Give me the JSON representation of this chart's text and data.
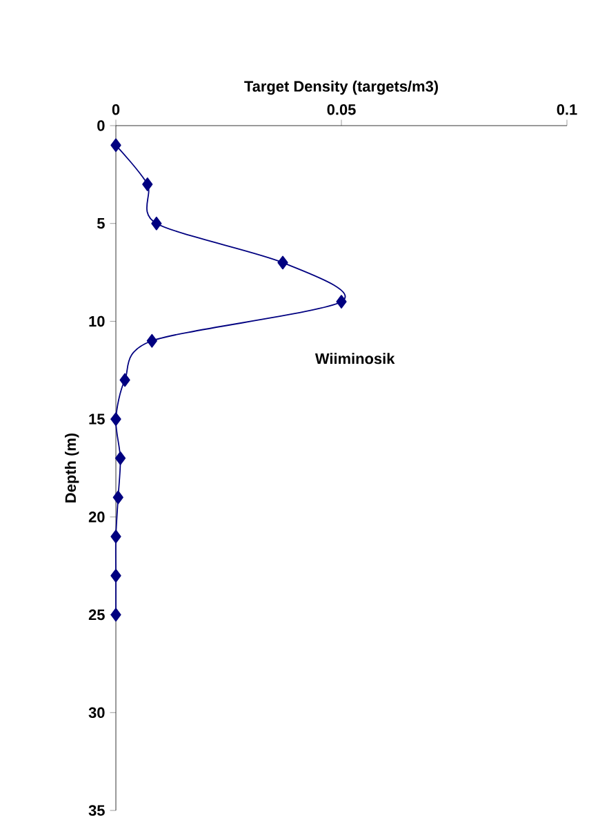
{
  "chart_data": {
    "type": "line",
    "xlabel": "Target Density (targets/m3)",
    "ylabel": "Depth (m)",
    "annotations": [
      "Wiiminosik"
    ],
    "series": [
      {
        "color": "#000080",
        "x": [
          0,
          0.007,
          0.009,
          0.037,
          0.05,
          0.008,
          0.002,
          0,
          0.001,
          0.0005,
          0,
          0,
          0
        ],
        "values": [
          1,
          3,
          5,
          7,
          9,
          11,
          13,
          15,
          17,
          19,
          21,
          23,
          25
        ]
      }
    ],
    "xlim": [
      0,
      0.1
    ],
    "xticks": [
      0,
      0.05,
      0.1
    ],
    "ylim": [
      35,
      0
    ],
    "yticks": [
      0,
      5,
      10,
      15,
      20,
      25,
      30,
      35
    ],
    "marker": "diamond",
    "grid": false
  }
}
